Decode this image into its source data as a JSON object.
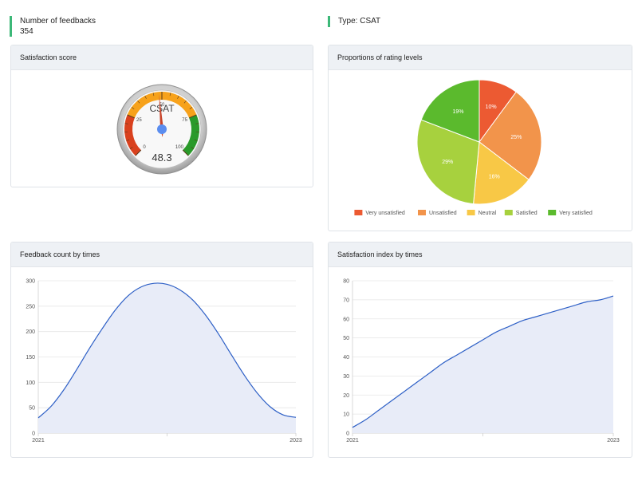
{
  "kpis": {
    "feedback_count_label": "Number of feedbacks",
    "feedback_count_value": "354",
    "type_label": "Type: CSAT"
  },
  "cards": {
    "satisfaction_score": "Satisfaction score",
    "proportions": "Proportions of rating levels",
    "feedback_count": "Feedback count by times",
    "satisfaction_index": "Satisfaction index by times"
  },
  "colors": {
    "kpi_accent": "#3cb878",
    "line": "#2d5fc6",
    "area_fill": "#e8ecf8",
    "gauge_red": "#d9411e",
    "gauge_orange": "#f7a21b",
    "gauge_green": "#2a9a2a",
    "gauge_needle": "#c8442a",
    "gauge_hub": "#5b8def"
  },
  "chart_data": [
    {
      "type": "gauge",
      "label": "CSAT",
      "value": 48.3,
      "value_text": "48.3",
      "min": 0,
      "max": 100,
      "ticks": [
        "0",
        "25",
        "50",
        "75",
        "100"
      ],
      "bands": [
        {
          "from": 0,
          "to": 25,
          "color": "#d9411e"
        },
        {
          "from": 25,
          "to": 75,
          "color": "#f7a21b"
        },
        {
          "from": 75,
          "to": 100,
          "color": "#2a9a2a"
        }
      ]
    },
    {
      "type": "pie",
      "labels": [
        "Very unsatisfied",
        "Unsatisfied",
        "Neutral",
        "Satisfied",
        "Very satisfied"
      ],
      "values": [
        10,
        25,
        16,
        29,
        19
      ],
      "value_labels": [
        "10%",
        "25%",
        "16%",
        "29%",
        "19%"
      ],
      "colors": [
        "#ec5a32",
        "#f2944b",
        "#f8c846",
        "#a7d13e",
        "#5bba2d"
      ],
      "legend": "bottom"
    },
    {
      "type": "area",
      "x_ticks": [
        "2021",
        "2023"
      ],
      "y_ticks": [
        "0",
        "50",
        "100",
        "150",
        "200",
        "250",
        "300"
      ],
      "ylim": [
        0,
        300
      ],
      "x": [
        0,
        0.05,
        0.1,
        0.15,
        0.2,
        0.25,
        0.3,
        0.35,
        0.4,
        0.45,
        0.5,
        0.55,
        0.6,
        0.65,
        0.7,
        0.75,
        0.8,
        0.85,
        0.9,
        0.95,
        1
      ],
      "values": [
        30,
        53,
        86,
        126,
        168,
        207,
        243,
        271,
        288,
        295,
        293,
        282,
        262,
        232,
        195,
        154,
        114,
        79,
        52,
        36,
        31
      ]
    },
    {
      "type": "area",
      "x_ticks": [
        "2021",
        "2023"
      ],
      "y_ticks": [
        "0",
        "10",
        "20",
        "30",
        "40",
        "50",
        "60",
        "70",
        "80"
      ],
      "ylim": [
        0,
        80
      ],
      "x": [
        0,
        0.05,
        0.1,
        0.15,
        0.2,
        0.25,
        0.3,
        0.35,
        0.4,
        0.45,
        0.5,
        0.55,
        0.6,
        0.65,
        0.7,
        0.75,
        0.8,
        0.85,
        0.9,
        0.95,
        1
      ],
      "values": [
        3,
        7,
        12,
        17,
        22,
        27,
        32,
        37,
        41,
        45,
        49,
        53,
        56,
        59,
        61,
        63,
        65,
        67,
        69,
        70,
        72
      ]
    }
  ]
}
